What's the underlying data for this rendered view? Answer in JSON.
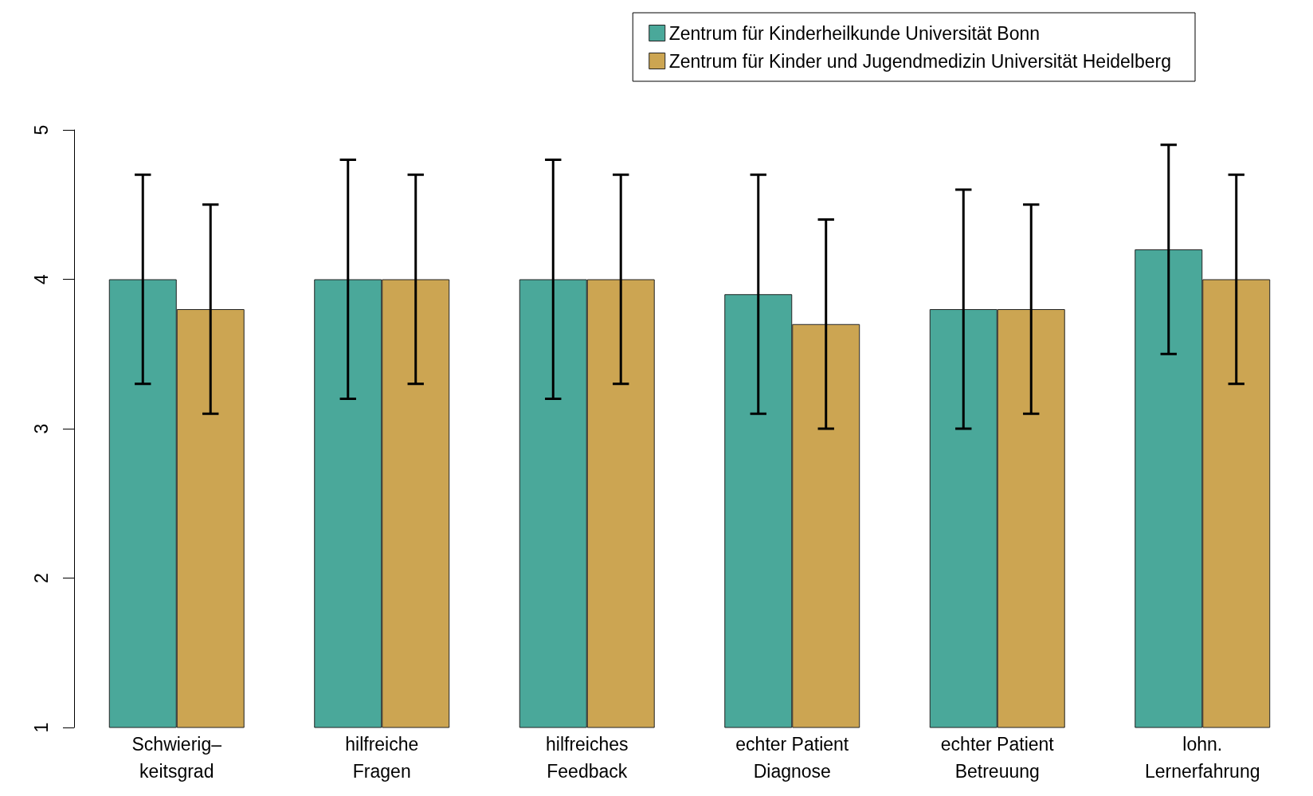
{
  "chart_data": {
    "type": "bar",
    "categories": [
      "Schwierig–\nkeitsgrad",
      "hilfreiche\nFragen",
      "hilfreiches\nFeedback",
      "echter Patient\nDiagnose",
      "echter Patient\nBetreuung",
      "lohn.\nLernerfahrung"
    ],
    "series": [
      {
        "name": "Zentrum für Kinderheilkunde Universität Bonn",
        "color": "#4aa89a",
        "values": [
          4.0,
          4.0,
          4.0,
          3.9,
          3.8,
          4.2
        ],
        "errors": [
          [
            3.3,
            4.7
          ],
          [
            3.2,
            4.8
          ],
          [
            3.2,
            4.8
          ],
          [
            3.1,
            4.7
          ],
          [
            3.0,
            4.6
          ],
          [
            3.5,
            4.9
          ]
        ]
      },
      {
        "name": "Zentrum für Kinder und Jugendmedizin Universität Heidelberg",
        "color": "#cca552",
        "values": [
          3.8,
          4.0,
          4.0,
          3.7,
          3.8,
          4.0
        ],
        "errors": [
          [
            3.1,
            4.5
          ],
          [
            3.3,
            4.7
          ],
          [
            3.3,
            4.7
          ],
          [
            3.0,
            4.4
          ],
          [
            3.1,
            4.5
          ],
          [
            3.3,
            4.7
          ]
        ]
      }
    ],
    "ylim": [
      1,
      5
    ],
    "yticks": [
      1,
      2,
      3,
      4,
      5
    ],
    "grid": false,
    "legend": "top right"
  }
}
